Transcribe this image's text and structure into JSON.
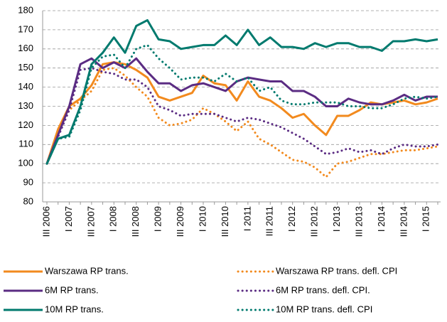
{
  "chart_data": {
    "type": "line",
    "categories": [
      "III 2006",
      null,
      "I 2007",
      null,
      "III 2007",
      null,
      "I 2008",
      null,
      "III 2008",
      null,
      "I 2009",
      null,
      "III 2009",
      null,
      "I 2010",
      null,
      "III 2010",
      null,
      "I 2011",
      null,
      "III 2011",
      null,
      "I 2012",
      null,
      "III 2012",
      null,
      "I 2013",
      null,
      "III 2013",
      null,
      "I 2014",
      null,
      "III 2014",
      null,
      "I 2015",
      null
    ],
    "ylim": [
      80,
      180
    ],
    "yticks": [
      80,
      90,
      100,
      110,
      120,
      130,
      140,
      150,
      160,
      170,
      180
    ],
    "grid": true,
    "series": [
      {
        "name": "Warszawa RP trans.",
        "color": "#f28a1e",
        "dash": false,
        "values": [
          100,
          118,
          130,
          134,
          141,
          152,
          153,
          152,
          149,
          145,
          135,
          133,
          135,
          137,
          146,
          142,
          141,
          133,
          143,
          135,
          133,
          129,
          124,
          126,
          120,
          115,
          125,
          125,
          128,
          132,
          131,
          132,
          133,
          131,
          132,
          134
        ]
      },
      {
        "name": "Warszawa RP trans. defl. CPI",
        "color": "#f28a1e",
        "dash": true,
        "values": [
          100,
          117,
          128,
          133,
          138,
          149,
          150,
          146,
          140,
          135,
          124,
          120,
          121,
          123,
          129,
          126,
          122,
          117,
          122,
          113,
          110,
          106,
          102,
          101,
          98,
          93,
          100,
          101,
          103,
          105,
          105,
          106,
          107,
          107,
          108,
          109
        ]
      },
      {
        "name": "6M RP trans.",
        "color": "#5b2c83",
        "dash": false,
        "values": [
          100,
          115,
          130,
          152,
          155,
          150,
          153,
          150,
          155,
          148,
          142,
          142,
          138,
          141,
          142,
          140,
          138,
          143,
          145,
          144,
          143,
          143,
          138,
          138,
          135,
          130,
          130,
          134,
          132,
          131,
          131,
          133,
          136,
          133,
          135,
          135
        ]
      },
      {
        "name": "6M RP trans. defl. CPI.",
        "color": "#5b2c83",
        "dash": true,
        "values": [
          100,
          114,
          128,
          149,
          150,
          148,
          147,
          144,
          144,
          140,
          130,
          128,
          125,
          126,
          126,
          126,
          124,
          122,
          124,
          123,
          121,
          119,
          116,
          113,
          109,
          105,
          106,
          108,
          106,
          107,
          105,
          108,
          110,
          109,
          109,
          110
        ]
      },
      {
        "name": "10M RP trans.",
        "color": "#007a6e",
        "dash": false,
        "values": [
          100,
          113,
          115,
          130,
          152,
          158,
          166,
          158,
          172,
          175,
          165,
          164,
          160,
          161,
          162,
          162,
          167,
          162,
          170,
          162,
          166,
          161,
          161,
          160,
          163,
          161,
          163,
          163,
          161,
          161,
          159,
          164,
          164,
          165,
          164,
          165
        ]
      },
      {
        "name": "10M RP trans. defl. CPI",
        "color": "#007a6e",
        "dash": true,
        "values": [
          100,
          113,
          114,
          128,
          150,
          156,
          157,
          150,
          160,
          162,
          155,
          150,
          144,
          145,
          145,
          143,
          147,
          143,
          145,
          138,
          140,
          133,
          131,
          131,
          132,
          132,
          132,
          130,
          130,
          129,
          129,
          131,
          134,
          135,
          134,
          135
        ]
      }
    ]
  }
}
